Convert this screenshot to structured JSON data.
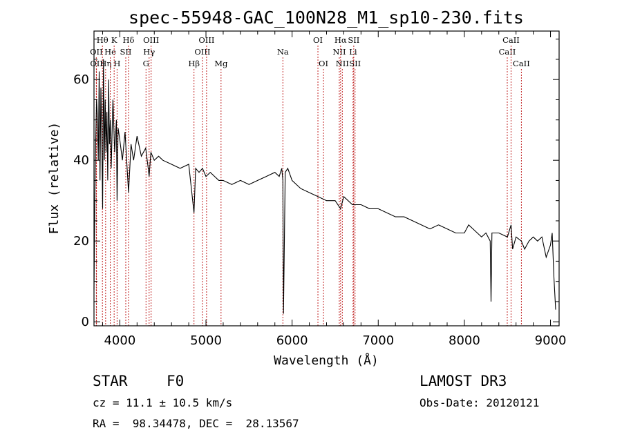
{
  "chart_data": {
    "type": "line",
    "title": "spec-55948-GAC_100N28_M1_sp10-230.fits",
    "xlabel": "Wavelength (Å)",
    "ylabel": "Flux (relative)",
    "xlim": [
      3700,
      9100
    ],
    "ylim": [
      -1,
      72
    ],
    "xticks": [
      4000,
      5000,
      6000,
      7000,
      8000,
      9000
    ],
    "yticks": [
      0,
      20,
      40,
      60
    ],
    "series": [
      {
        "name": "flux",
        "x": [
          3700,
          3710,
          3720,
          3730,
          3740,
          3750,
          3760,
          3770,
          3780,
          3790,
          3800,
          3810,
          3820,
          3830,
          3840,
          3850,
          3860,
          3870,
          3880,
          3890,
          3900,
          3920,
          3940,
          3960,
          3968,
          3980,
          4000,
          4030,
          4060,
          4101,
          4130,
          4160,
          4200,
          4250,
          4300,
          4330,
          4340,
          4360,
          4400,
          4450,
          4500,
          4600,
          4700,
          4800,
          4861,
          4880,
          4920,
          4960,
          5000,
          5050,
          5100,
          5150,
          5200,
          5300,
          5400,
          5500,
          5600,
          5700,
          5800,
          5850,
          5880,
          5893,
          5900,
          5920,
          5950,
          6000,
          6100,
          6200,
          6300,
          6400,
          6500,
          6563,
          6600,
          6700,
          6800,
          6900,
          7000,
          7100,
          7200,
          7300,
          7400,
          7500,
          7600,
          7700,
          7800,
          7900,
          8000,
          8050,
          8100,
          8200,
          8250,
          8300,
          8310,
          8320,
          8400,
          8500,
          8542,
          8560,
          8600,
          8662,
          8680,
          8700,
          8750,
          8800,
          8850,
          8900,
          8950,
          9000,
          9020,
          9040,
          9060
        ],
        "y": [
          8,
          30,
          45,
          55,
          50,
          40,
          62,
          35,
          58,
          47,
          28,
          65,
          40,
          55,
          42,
          52,
          35,
          60,
          44,
          50,
          38,
          55,
          42,
          50,
          30,
          48,
          45,
          40,
          47,
          32,
          44,
          40,
          46,
          41,
          43,
          38,
          36,
          42,
          40,
          41,
          40,
          39,
          38,
          39,
          27,
          38,
          37,
          38,
          36,
          37,
          36,
          35,
          35,
          34,
          35,
          34,
          35,
          36,
          37,
          36,
          38,
          35,
          2,
          37,
          38,
          35,
          33,
          32,
          31,
          30,
          30,
          28,
          31,
          29,
          29,
          28,
          28,
          27,
          26,
          26,
          25,
          24,
          23,
          24,
          23,
          22,
          22,
          24,
          23,
          21,
          22,
          20,
          5,
          22,
          22,
          21,
          24,
          18,
          21,
          20,
          19,
          18,
          20,
          21,
          20,
          21,
          16,
          19,
          22,
          11,
          3
        ]
      }
    ],
    "line_markers": [
      {
        "name": "OII",
        "x": 3727,
        "row": 1
      },
      {
        "name": "OII",
        "x": 3729,
        "row": 2
      },
      {
        "name": "Hθ",
        "x": 3798,
        "row": 0
      },
      {
        "name": "Hη",
        "x": 3835,
        "row": 2
      },
      {
        "name": "He",
        "x": 3889,
        "row": 1
      },
      {
        "name": "K",
        "x": 3934,
        "row": 0
      },
      {
        "name": "H",
        "x": 3968,
        "row": 2
      },
      {
        "name": "SII",
        "x": 4069,
        "row": 1
      },
      {
        "name": "Hδ",
        "x": 4101,
        "row": 0
      },
      {
        "name": "G",
        "x": 4304,
        "row": 2
      },
      {
        "name": "Hγ",
        "x": 4340,
        "row": 1
      },
      {
        "name": "OIII",
        "x": 4363,
        "row": 0
      },
      {
        "name": "Hβ",
        "x": 4861,
        "row": 2
      },
      {
        "name": "OIII",
        "x": 4959,
        "row": 1
      },
      {
        "name": "OIII",
        "x": 5007,
        "row": 0
      },
      {
        "name": "Mg",
        "x": 5175,
        "row": 2
      },
      {
        "name": "Na",
        "x": 5893,
        "row": 1
      },
      {
        "name": "OI",
        "x": 6300,
        "row": 0
      },
      {
        "name": "OI",
        "x": 6364,
        "row": 2
      },
      {
        "name": "NII",
        "x": 6548,
        "row": 1
      },
      {
        "name": "Hα",
        "x": 6563,
        "row": 0
      },
      {
        "name": "NII",
        "x": 6583,
        "row": 2
      },
      {
        "name": "Li",
        "x": 6708,
        "row": 1
      },
      {
        "name": "SII",
        "x": 6716,
        "row": 0
      },
      {
        "name": "SII",
        "x": 6731,
        "row": 2
      },
      {
        "name": "CaII",
        "x": 8498,
        "row": 1
      },
      {
        "name": "CaII",
        "x": 8542,
        "row": 0
      },
      {
        "name": "CaII",
        "x": 8662,
        "row": 2
      }
    ]
  },
  "info": {
    "class": "STAR",
    "subclass": "F0",
    "survey": "LAMOST DR3",
    "cz": "cz = 11.1 ± 10.5 km/s",
    "obs_date": "Obs-Date: 20120121",
    "coords": "RA =  98.34478, DEC =  28.13567"
  }
}
